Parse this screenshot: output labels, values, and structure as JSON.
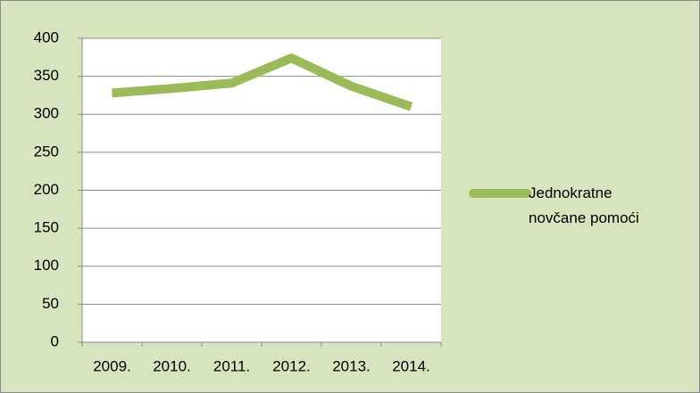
{
  "chart_data": {
    "type": "line",
    "categories": [
      "2009.",
      "2010.",
      "2011.",
      "2012.",
      "2013.",
      "2014."
    ],
    "series": [
      {
        "name": "Jednokratne novčane pomoći",
        "color": "#9bbb59",
        "values": [
          328,
          334,
          341,
          374,
          337,
          310
        ]
      }
    ],
    "ylim": [
      0,
      400
    ],
    "yticks": [
      0,
      50,
      100,
      150,
      200,
      250,
      300,
      350,
      400
    ],
    "grid": true,
    "legend": "right"
  }
}
